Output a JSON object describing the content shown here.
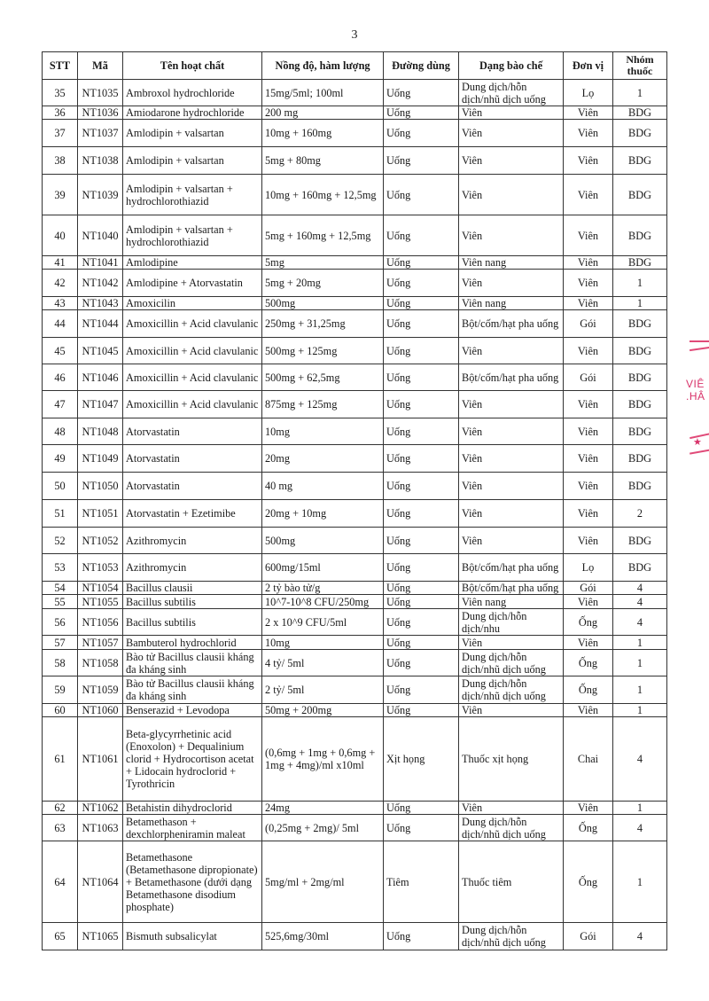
{
  "page_number": "3",
  "table": {
    "headers": [
      "STT",
      "Mã",
      "Tên hoạt chất",
      "Nồng độ, hàm lượng",
      "Đường dùng",
      "Dạng bào chế",
      "Đơn vị",
      "Nhóm thuốc"
    ],
    "rows": [
      [
        "35",
        "NT1035",
        "Ambroxol hydrochloride",
        "15mg/5ml; 100ml",
        "Uống",
        "Dung dịch/hỗn dịch/nhũ dịch uống",
        "Lọ",
        "1"
      ],
      [
        "36",
        "NT1036",
        "Amiodarone hydrochloride",
        "200 mg",
        "Uống",
        "Viên",
        "Viên",
        "BDG"
      ],
      [
        "37",
        "NT1037",
        "Amlodipin + valsartan",
        "10mg + 160mg",
        "Uống",
        "Viên",
        "Viên",
        "BDG"
      ],
      [
        "38",
        "NT1038",
        "Amlodipin + valsartan",
        "5mg + 80mg",
        "Uống",
        "Viên",
        "Viên",
        "BDG"
      ],
      [
        "39",
        "NT1039",
        "Amlodipin + valsartan + hydrochlorothiazid",
        "10mg + 160mg + 12,5mg",
        "Uống",
        "Viên",
        "Viên",
        "BDG"
      ],
      [
        "40",
        "NT1040",
        "Amlodipin + valsartan + hydrochlorothiazid",
        "5mg + 160mg + 12,5mg",
        "Uống",
        "Viên",
        "Viên",
        "BDG"
      ],
      [
        "41",
        "NT1041",
        "Amlodipine",
        "5mg",
        "Uống",
        "Viên nang",
        "Viên",
        "BDG"
      ],
      [
        "42",
        "NT1042",
        "Amlodipine + Atorvastatin",
        "5mg + 20mg",
        "Uống",
        "Viên",
        "Viên",
        "1"
      ],
      [
        "43",
        "NT1043",
        "Amoxicilin",
        "500mg",
        "Uống",
        "Viên nang",
        "Viên",
        "1"
      ],
      [
        "44",
        "NT1044",
        "Amoxicillin + Acid clavulanic",
        "250mg + 31,25mg",
        "Uống",
        "Bột/cốm/hạt pha uống",
        "Gói",
        "BDG"
      ],
      [
        "45",
        "NT1045",
        "Amoxicillin + Acid clavulanic",
        "500mg + 125mg",
        "Uống",
        "Viên",
        "Viên",
        "BDG"
      ],
      [
        "46",
        "NT1046",
        "Amoxicillin + Acid clavulanic",
        "500mg + 62,5mg",
        "Uống",
        "Bột/cốm/hạt pha uống",
        "Gói",
        "BDG"
      ],
      [
        "47",
        "NT1047",
        "Amoxicillin + Acid clavulanic",
        "875mg + 125mg",
        "Uống",
        "Viên",
        "Viên",
        "BDG"
      ],
      [
        "48",
        "NT1048",
        "Atorvastatin",
        "10mg",
        "Uống",
        "Viên",
        "Viên",
        "BDG"
      ],
      [
        "49",
        "NT1049",
        "Atorvastatin",
        "20mg",
        "Uống",
        "Viên",
        "Viên",
        "BDG"
      ],
      [
        "50",
        "NT1050",
        "Atorvastatin",
        "40 mg",
        "Uống",
        "Viên",
        "Viên",
        "BDG"
      ],
      [
        "51",
        "NT1051",
        "Atorvastatin + Ezetimibe",
        "20mg + 10mg",
        "Uống",
        "Viên",
        "Viên",
        "2"
      ],
      [
        "52",
        "NT1052",
        "Azithromycin",
        "500mg",
        "Uống",
        "Viên",
        "Viên",
        "BDG"
      ],
      [
        "53",
        "NT1053",
        "Azithromycin",
        "600mg/15ml",
        "Uống",
        "Bột/cốm/hạt pha uống",
        "Lọ",
        "BDG"
      ],
      [
        "54",
        "NT1054",
        "Bacillus clausii",
        "2 tỷ bào tử/g",
        "Uống",
        "Bột/cốm/hạt pha uống",
        "Gói",
        "4"
      ],
      [
        "55",
        "NT1055",
        "Bacillus subtilis",
        "10^7-10^8  CFU/250mg",
        "Uống",
        "Viên nang",
        "Viên",
        "4"
      ],
      [
        "56",
        "NT1056",
        "Bacillus subtilis",
        "2 x 10^9 CFU/5ml",
        "Uống",
        "Dung dịch/hỗn dịch/nhu",
        "Ống",
        "4"
      ],
      [
        "57",
        "NT1057",
        "Bambuterol hydrochlorid",
        "10mg",
        "Uống",
        "Viên",
        "Viên",
        "1"
      ],
      [
        "58",
        "NT1058",
        "Bào tử Bacillus clausii kháng đa kháng sinh",
        "4 tỷ/ 5ml",
        "Uống",
        "Dung dịch/hỗn dịch/nhũ dịch uống",
        "Ống",
        "1"
      ],
      [
        "59",
        "NT1059",
        "Bào tử Bacillus clausii kháng đa kháng sinh",
        "2 tỷ/ 5ml",
        "Uống",
        "Dung dịch/hỗn dịch/nhũ dịch uống",
        "Ống",
        "1"
      ],
      [
        "60",
        "NT1060",
        "Benserazid + Levodopa",
        "50mg + 200mg",
        "Uống",
        "Viên",
        "Viên",
        "1"
      ],
      [
        "61",
        "NT1061",
        "Beta-glycyrrhetinic acid (Enoxolon) + Dequalinium clorid + Hydrocortison acetat + Lidocain hydroclorid + Tyrothricin",
        "(0,6mg + 1mg + 0,6mg + 1mg + 4mg)/ml x10ml",
        "Xịt họng",
        "Thuốc xịt họng",
        "Chai",
        "4"
      ],
      [
        "62",
        "NT1062",
        "Betahistin dihydroclorid",
        "24mg",
        "Uống",
        "Viên",
        "Viên",
        "1"
      ],
      [
        "63",
        "NT1063",
        "Betamethason + dexchlorpheniramin maleat",
        "(0,25mg + 2mg)/ 5ml",
        "Uống",
        "Dung dịch/hỗn dịch/nhũ dịch uống",
        "Ống",
        "4"
      ],
      [
        "64",
        "NT1064",
        "Betamethasone (Betamethasone dipropionate) + Betamethasone (dưới dạng Betamethasone disodium phosphate)",
        "5mg/ml + 2mg/ml",
        "Tiêm",
        "Thuốc tiêm",
        "Ống",
        "1"
      ],
      [
        "65",
        "NT1065",
        "Bismuth subsalicylat",
        "525,6mg/30ml",
        "Uống",
        "Dung dịch/hỗn dịch/nhũ dịch uống",
        "Gói",
        "4"
      ]
    ]
  },
  "stamp": {
    "text_lines": [
      "VIỆ",
      "HẢ"
    ],
    "color": "#d8336a"
  }
}
